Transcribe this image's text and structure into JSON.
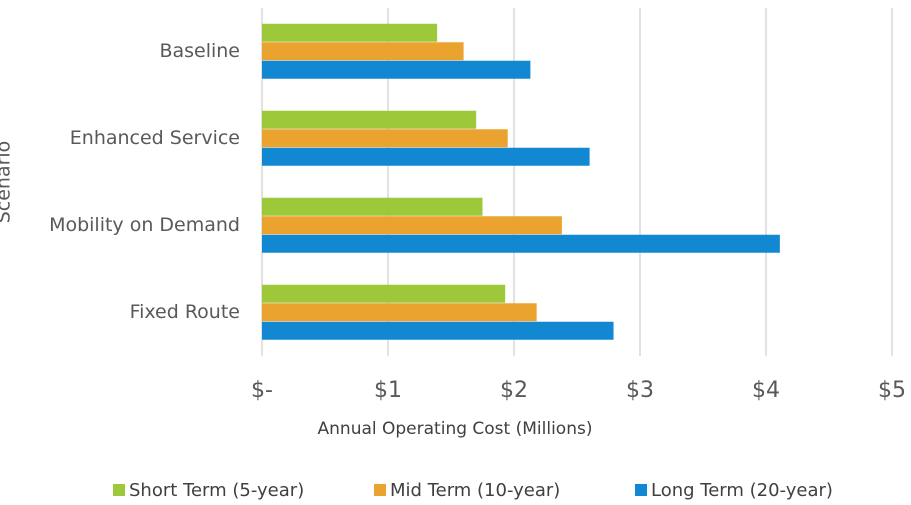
{
  "chart_data": {
    "type": "bar",
    "orientation": "horizontal",
    "x_label": "Annual Operating Cost (Millions)",
    "y_label": "Scenario",
    "categories": [
      "Baseline",
      "Enhanced Service",
      "Mobility on Demand",
      "Fixed Route"
    ],
    "series": [
      {
        "name": "Short Term (5-year)",
        "color": "#9dc83a",
        "values": [
          1.39,
          1.7,
          1.75,
          1.93
        ]
      },
      {
        "name": "Mid Term (10-year)",
        "color": "#eba32f",
        "values": [
          1.6,
          1.95,
          2.38,
          2.18
        ]
      },
      {
        "name": "Long Term (20-year)",
        "color": "#1388d2",
        "values": [
          2.13,
          2.6,
          4.11,
          2.79
        ]
      }
    ],
    "xlim": [
      0,
      5
    ],
    "xticks": [
      {
        "value": 0,
        "label": "$-"
      },
      {
        "value": 1,
        "label": "$1"
      },
      {
        "value": 2,
        "label": "$2"
      },
      {
        "value": 3,
        "label": "$3"
      },
      {
        "value": 4,
        "label": "$4"
      },
      {
        "value": 5,
        "label": "$5"
      }
    ],
    "grid": true,
    "legend": "bottom"
  }
}
